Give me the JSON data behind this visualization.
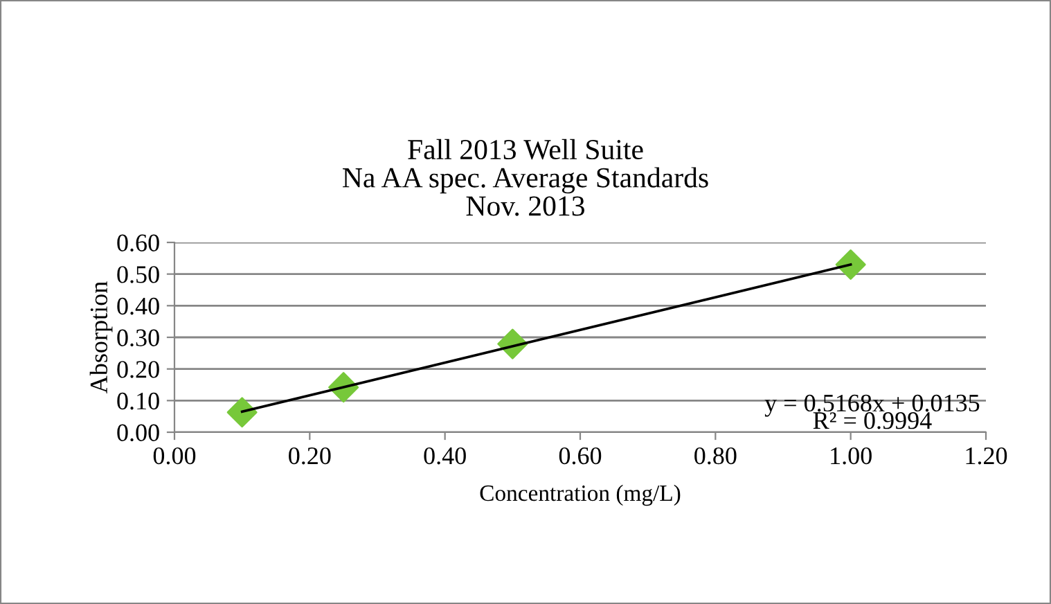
{
  "chart_data": {
    "type": "scatter",
    "title": "Fall 2013 Well Suite\nNa AA spec. Average Standards\nNov. 2013",
    "xlabel": "Concentration (mg/L)",
    "ylabel": "Absorption",
    "series": [
      {
        "color": "#77c83a",
        "marker": "diamond",
        "x": [
          0.1,
          0.25,
          0.5,
          1.0
        ],
        "values": [
          0.063,
          0.142,
          0.279,
          0.53
        ]
      },
      {
        "type": "line",
        "color": "#000000",
        "line_style": "solid",
        "x": [
          0.1,
          1.0
        ],
        "values": [
          0.065,
          0.53
        ]
      }
    ],
    "annotations": [
      "y = 0.5168x + 0.0135",
      "R² = 0.9994"
    ],
    "xlim": [
      0,
      1.2
    ],
    "xticks": [
      {
        "value": 0,
        "label": "0.00"
      },
      {
        "value": 0.2,
        "label": "0.20"
      },
      {
        "value": 0.4,
        "label": "0.40"
      },
      {
        "value": 0.6,
        "label": "0.60"
      },
      {
        "value": 0.8,
        "label": "0.80"
      },
      {
        "value": 1.0,
        "label": "1.00"
      },
      {
        "value": 1.2,
        "label": "1.20"
      }
    ],
    "ylim": [
      0,
      0.6
    ],
    "yticks": [
      {
        "value": 0,
        "label": "0.00"
      },
      {
        "value": 0.1,
        "label": "0.10"
      },
      {
        "value": 0.2,
        "label": "0.20"
      },
      {
        "value": 0.3,
        "label": "0.30"
      },
      {
        "value": 0.4,
        "label": "0.40"
      },
      {
        "value": 0.5,
        "label": "0.50"
      },
      {
        "value": 0.6,
        "label": "0.60"
      }
    ],
    "grid": "y",
    "legend": false
  }
}
